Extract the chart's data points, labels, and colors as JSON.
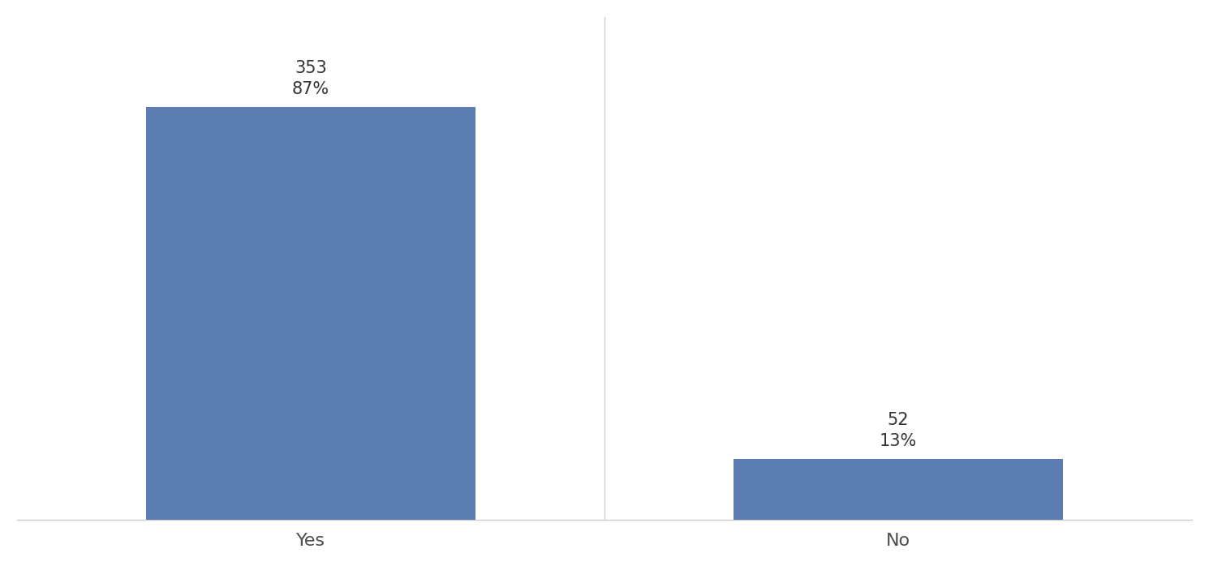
{
  "categories": [
    "Yes",
    "No"
  ],
  "values": [
    353,
    52
  ],
  "labels": [
    "353\n87%",
    "52\n13%"
  ],
  "bar_color": "#5B7DB1",
  "background_color": "#ffffff",
  "ylim": [
    0,
    430
  ],
  "bar_width": 0.28,
  "annotation_fontsize": 15,
  "xlabel_fontsize": 16,
  "spine_color": "#cccccc",
  "x_positions": [
    0.25,
    0.75
  ]
}
